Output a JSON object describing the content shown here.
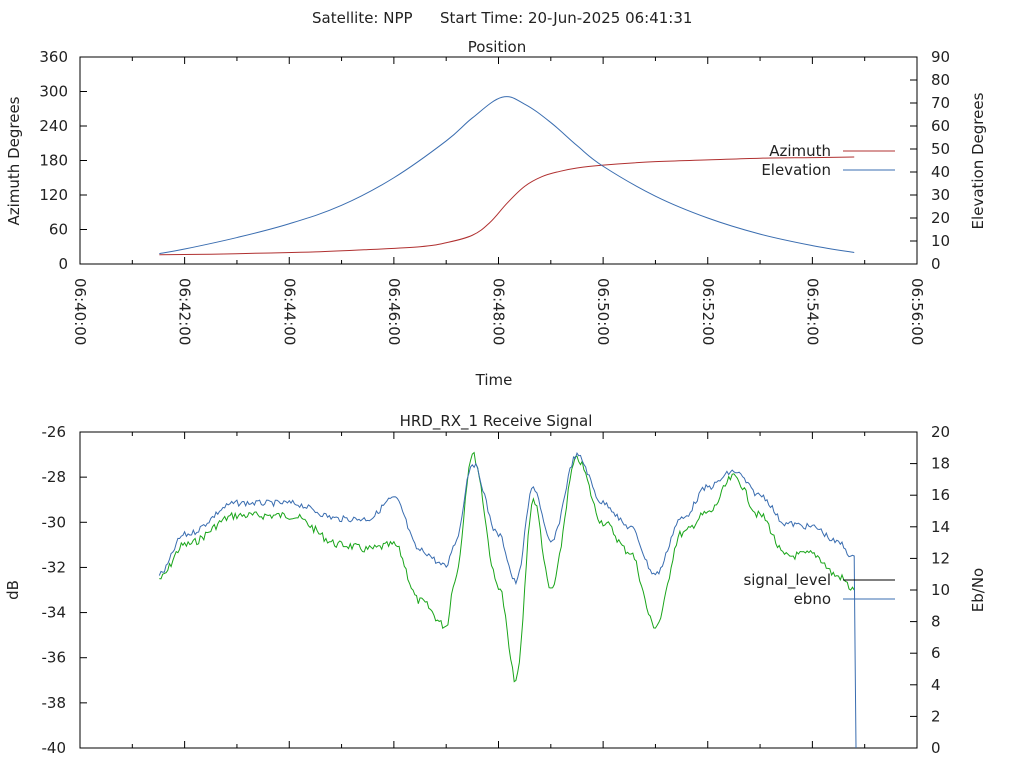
{
  "header": {
    "satellite": "Satellite: NPP",
    "start_time": "Start Time: 20-Jun-2025 06:41:31"
  },
  "colors": {
    "azimuth": "#b03030",
    "elevation": "#3a6db0",
    "signal_level": "#000000",
    "ebno": "#3a6db0",
    "green_trace": "#1aa51a",
    "axis": "#000000"
  },
  "chart_data": [
    {
      "type": "line",
      "title": "Position",
      "xlabel": "Time",
      "ylabel": "Azimuth Degrees",
      "y2label": "Elevation Degrees",
      "xlim": [
        "06:40:00",
        "06:56:00"
      ],
      "ylim": [
        0,
        360
      ],
      "y2lim": [
        0,
        90
      ],
      "x_ticks": [
        "06:40:00",
        "06:42:00",
        "06:44:00",
        "06:46:00",
        "06:48:00",
        "06:50:00",
        "06:52:00",
        "06:54:00",
        "06:56:00"
      ],
      "y_ticks": [
        "0",
        "60",
        "120",
        "180",
        "240",
        "300",
        "360"
      ],
      "y2_ticks": [
        "0",
        "10",
        "20",
        "30",
        "40",
        "50",
        "60",
        "70",
        "80",
        "90"
      ],
      "legend_position": "right",
      "series": [
        {
          "name": "Azimuth",
          "axis": "left",
          "x": [
            "06:41:31",
            "06:42:30",
            "06:43:30",
            "06:44:30",
            "06:45:30",
            "06:46:30",
            "06:47:00",
            "06:47:30",
            "06:47:50",
            "06:48:10",
            "06:48:30",
            "06:48:50",
            "06:49:10",
            "06:49:30",
            "06:50:00",
            "06:51:00",
            "06:52:00",
            "06:53:00",
            "06:54:00",
            "06:54:48"
          ],
          "y": [
            16,
            17,
            19,
            21,
            25,
            30,
            37,
            50,
            72,
            106,
            135,
            152,
            161,
            167,
            172,
            178,
            181,
            184,
            185,
            186
          ]
        },
        {
          "name": "Elevation",
          "axis": "right",
          "x": [
            "06:41:31",
            "06:42:00",
            "06:43:00",
            "06:44:00",
            "06:45:00",
            "06:46:00",
            "06:47:00",
            "06:47:30",
            "06:48:04",
            "06:48:30",
            "06:49:00",
            "06:49:30",
            "06:50:00",
            "06:51:00",
            "06:52:00",
            "06:53:00",
            "06:54:00",
            "06:54:48"
          ],
          "y": [
            4.5,
            6.5,
            11.5,
            17.5,
            25.5,
            37.5,
            53.5,
            63.5,
            72.5,
            69.5,
            61.5,
            51.5,
            42.5,
            29.5,
            20.0,
            13.0,
            8.0,
            5.0
          ]
        }
      ]
    },
    {
      "type": "line",
      "title": "HRD_RX_1 Receive Signal",
      "ylabel": "dB",
      "y2label": "Eb/No",
      "xlim": [
        "06:40:00",
        "06:56:00"
      ],
      "ylim": [
        -40,
        -26
      ],
      "y2lim": [
        0,
        20
      ],
      "y_ticks": [
        "-26",
        "-28",
        "-30",
        "-32",
        "-34",
        "-36",
        "-38",
        "-40"
      ],
      "y2_ticks": [
        "20",
        "18",
        "16",
        "14",
        "12",
        "10",
        "8",
        "6",
        "4",
        "2",
        "0"
      ],
      "legend_position": "right",
      "series": [
        {
          "name": "signal_level",
          "axis": "left",
          "x": [
            "06:41:31",
            "06:42:00",
            "06:43:00",
            "06:44:00",
            "06:45:00",
            "06:45:30",
            "06:46:00",
            "06:46:30",
            "06:47:00",
            "06:47:10",
            "06:47:30",
            "06:48:00",
            "06:48:20",
            "06:48:40",
            "06:49:00",
            "06:49:30",
            "06:50:00",
            "06:50:30",
            "06:51:00",
            "06:51:30",
            "06:52:00",
            "06:52:30",
            "06:53:00",
            "06:53:30",
            "06:54:00",
            "06:54:30",
            "06:54:48"
          ],
          "y": [
            -32.5,
            -31.0,
            -29.7,
            -29.7,
            -31.0,
            -31.2,
            -31.0,
            -33.5,
            -34.6,
            -32.5,
            -27.0,
            -32.8,
            -37.0,
            -29.0,
            -33.0,
            -27.2,
            -30.0,
            -31.3,
            -34.6,
            -30.5,
            -29.6,
            -28.0,
            -29.7,
            -31.5,
            -31.4,
            -32.4,
            -33.0
          ]
        },
        {
          "name": "ebno",
          "axis": "right",
          "x": [
            "06:41:31",
            "06:42:00",
            "06:43:00",
            "06:44:00",
            "06:45:00",
            "06:45:30",
            "06:46:00",
            "06:46:30",
            "06:47:00",
            "06:47:10",
            "06:47:30",
            "06:48:00",
            "06:48:20",
            "06:48:40",
            "06:49:00",
            "06:49:30",
            "06:50:00",
            "06:50:30",
            "06:51:00",
            "06:51:30",
            "06:52:00",
            "06:52:30",
            "06:53:00",
            "06:53:30",
            "06:54:00",
            "06:54:30",
            "06:54:48",
            "06:54:50"
          ],
          "y": [
            11.0,
            13.5,
            15.5,
            15.5,
            14.5,
            14.5,
            15.8,
            12.5,
            11.5,
            13.0,
            18.0,
            13.5,
            10.5,
            16.5,
            13.0,
            18.5,
            15.5,
            14.0,
            11.0,
            14.5,
            16.5,
            17.5,
            16.0,
            14.2,
            14.0,
            13.0,
            12.0,
            0.0
          ]
        }
      ]
    }
  ]
}
